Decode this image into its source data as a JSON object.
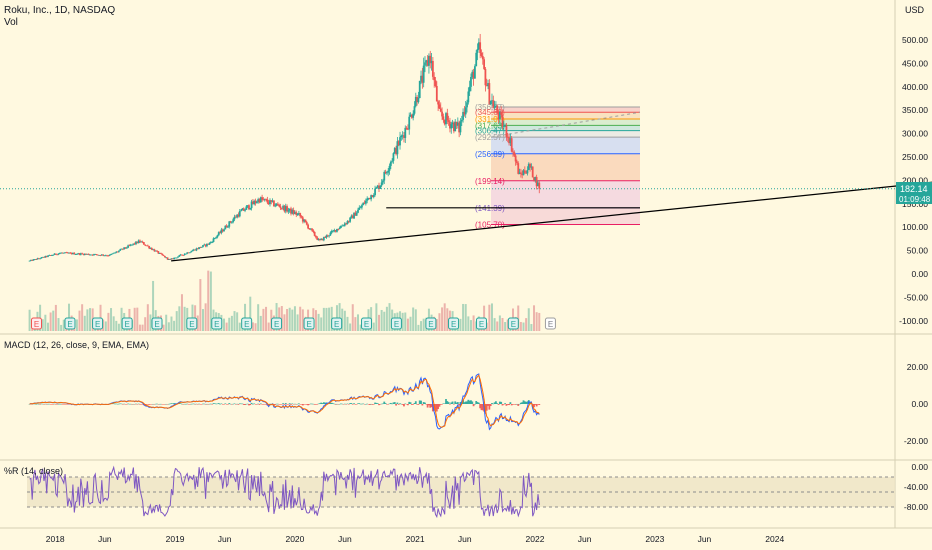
{
  "header": {
    "symbol_line": "Roku, Inc., 1D, NASDAQ",
    "vol_label": "Vol",
    "currency": "USD"
  },
  "price_badge": {
    "value": "182.14",
    "countdown": "01:09:48",
    "color": "#26a69a"
  },
  "colors": {
    "background": "#fff9e0",
    "up_candle": "#26a69a",
    "down_candle": "#ef5350",
    "macd_line": "#2962ff",
    "signal_line": "#ff6d00",
    "williams_line": "#7e57c2",
    "trendline": "#000000"
  },
  "chart_data": [
    {
      "type": "candlestick",
      "name": "price",
      "ylabel": "USD",
      "ylim": [
        -100,
        530
      ],
      "y_ticks": [
        "500.00",
        "450.00",
        "400.00",
        "350.00",
        "300.00",
        "250.00",
        "200.00",
        "150.00",
        "100.00",
        "50.00",
        "0.00",
        "-50.00",
        "-100.00"
      ],
      "x_ticks": [
        "2018",
        "Jun",
        "2019",
        "Jun",
        "2020",
        "Jun",
        "2021",
        "Jun",
        "2022",
        "Jun",
        "2023",
        "Jun",
        "2024"
      ],
      "key_points": [
        {
          "date": "2017-10",
          "close": 28
        },
        {
          "date": "2018-01",
          "close": 45
        },
        {
          "date": "2018-06",
          "close": 40
        },
        {
          "date": "2018-09",
          "close": 70
        },
        {
          "date": "2018-12",
          "close": 30
        },
        {
          "date": "2019-04",
          "close": 65
        },
        {
          "date": "2019-07",
          "close": 130
        },
        {
          "date": "2019-09",
          "close": 160
        },
        {
          "date": "2019-11",
          "close": 145
        },
        {
          "date": "2020-01",
          "close": 125
        },
        {
          "date": "2020-03",
          "close": 70
        },
        {
          "date": "2020-06",
          "close": 115
        },
        {
          "date": "2020-09",
          "close": 190
        },
        {
          "date": "2020-12",
          "close": 330
        },
        {
          "date": "2021-02",
          "close": 470
        },
        {
          "date": "2021-03",
          "close": 340
        },
        {
          "date": "2021-05",
          "close": 310
        },
        {
          "date": "2021-07",
          "close": 480
        },
        {
          "date": "2021-08",
          "close": 380
        },
        {
          "date": "2021-10",
          "close": 290
        },
        {
          "date": "2021-11",
          "close": 210
        },
        {
          "date": "2021-12",
          "close": 230
        },
        {
          "date": "2022-01",
          "close": 182.14
        }
      ],
      "fib_levels": [
        {
          "label": "(356.97)",
          "value": 356.97,
          "color": "#9e9e9e"
        },
        {
          "label": "(345.68)",
          "value": 345.68,
          "color": "#ef5350"
        },
        {
          "label": "(331.07)",
          "value": 331.07,
          "color": "#ff9800"
        },
        {
          "label": "(317.63)",
          "value": 317.63,
          "color": "#4caf50"
        },
        {
          "label": "(306.47)",
          "value": 306.47,
          "color": "#26a69a"
        },
        {
          "label": "(292.57)",
          "value": 292.57,
          "color": "#9e9e9e"
        },
        {
          "label": "(256.89)",
          "value": 256.89,
          "color": "#2962ff"
        },
        {
          "label": "(199.14)",
          "value": 199.14,
          "color": "#e91e63"
        },
        {
          "label": "(141.39)",
          "value": 141.39,
          "color": "#7e57c2"
        },
        {
          "label": "(105.70)",
          "value": 105.7,
          "color": "#e91e63"
        }
      ],
      "earnings_marker": "E"
    },
    {
      "type": "line",
      "name": "MACD",
      "title": "MACD (12, 26, close, 9, EMA, EMA)",
      "y_ticks": [
        "20.00",
        "0.00",
        "-20.00"
      ],
      "ylim": [
        -27,
        33
      ]
    },
    {
      "type": "line",
      "name": "Williams %R",
      "title": "%R (14, close)",
      "y_ticks": [
        "0.00",
        "-40.00",
        "-80.00"
      ],
      "ylim": [
        -100,
        0
      ],
      "bands": [
        -20,
        -50,
        -80
      ]
    }
  ]
}
